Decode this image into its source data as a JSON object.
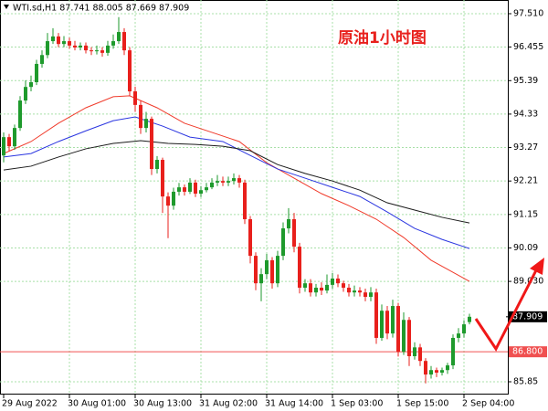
{
  "chart_data": {
    "type": "candlestick",
    "title": "WTI.sd,H1  87.741 88.005 87.669 87.909",
    "annotation": "原油1小时图",
    "categories": [
      "29 Aug 2022",
      null,
      null,
      null,
      null,
      null,
      null,
      null,
      null,
      null,
      null,
      null,
      "30 Aug 01:00",
      null,
      null,
      null,
      null,
      null,
      null,
      null,
      null,
      null,
      null,
      null,
      "30 Aug 13:00",
      null,
      null,
      null,
      null,
      null,
      null,
      null,
      null,
      null,
      null,
      null,
      "31 Aug 02:00",
      null,
      null,
      null,
      null,
      null,
      null,
      null,
      null,
      null,
      null,
      null,
      "31 Aug 14:00",
      null,
      null,
      null,
      null,
      null,
      null,
      null,
      null,
      null,
      null,
      null,
      "1 Sep 03:00",
      null,
      null,
      null,
      null,
      null,
      null,
      null,
      null,
      null,
      null,
      null,
      "1 Sep 15:00",
      null,
      null,
      null,
      null,
      null,
      null,
      null,
      null,
      null,
      null,
      null,
      "2 Sep 04:00",
      null
    ],
    "open": [
      93.02,
      93.6,
      93.31,
      93.89,
      94.76,
      95.19,
      95.34,
      95.92,
      96.2,
      96.64,
      96.79,
      96.55,
      96.64,
      96.5,
      96.44,
      96.5,
      96.35,
      96.32,
      96.35,
      96.27,
      96.5,
      96.64,
      96.93,
      96.35,
      95.05,
      94.62,
      93.89,
      94.18,
      92.59,
      92.88,
      91.72,
      91.43,
      91.87,
      92.01,
      91.87,
      92.16,
      91.81,
      91.92,
      92.01,
      92.16,
      92.21,
      92.16,
      92.21,
      92.3,
      92.16,
      91.0,
      89.84,
      88.97,
      89.26,
      89.7,
      88.97,
      89.84,
      90.71,
      91.0,
      90.13,
      88.83,
      88.97,
      88.68,
      88.83,
      88.74,
      88.92,
      89.12,
      88.97,
      88.83,
      88.68,
      88.74,
      88.68,
      88.54,
      88.68,
      87.24,
      88.1,
      87.38,
      88.25,
      86.8,
      87.81,
      86.66,
      86.94,
      86.51,
      86.08,
      86.22,
      86.14,
      86.22,
      86.37,
      87.24,
      87.38,
      87.741
    ],
    "high": [
      93.75,
      93.7,
      94.0,
      94.9,
      95.4,
      95.55,
      96.05,
      96.35,
      96.9,
      97.05,
      96.9,
      96.8,
      96.75,
      96.65,
      96.6,
      96.6,
      96.45,
      96.5,
      96.45,
      96.65,
      96.85,
      97.4,
      97.05,
      96.45,
      95.2,
      94.75,
      94.4,
      94.25,
      93.0,
      92.95,
      91.85,
      92.0,
      92.15,
      92.1,
      92.3,
      92.25,
      92.05,
      92.15,
      92.3,
      92.4,
      92.35,
      92.35,
      92.45,
      92.4,
      92.25,
      91.1,
      89.95,
      89.45,
      89.9,
      89.8,
      90.0,
      90.9,
      91.35,
      91.2,
      90.25,
      89.1,
      89.1,
      88.95,
      89.0,
      89.25,
      89.3,
      89.25,
      89.05,
      88.95,
      88.9,
      88.85,
      88.8,
      88.85,
      88.8,
      88.3,
      88.25,
      88.45,
      88.35,
      88.05,
      87.9,
      87.1,
      87.05,
      86.6,
      86.35,
      86.3,
      86.3,
      86.45,
      87.35,
      87.55,
      87.8,
      88.005
    ],
    "low": [
      92.8,
      93.15,
      93.2,
      93.8,
      94.65,
      95.05,
      95.25,
      95.8,
      96.1,
      96.55,
      96.45,
      96.45,
      96.4,
      96.35,
      96.35,
      96.25,
      96.2,
      96.22,
      96.15,
      96.18,
      96.4,
      96.55,
      96.2,
      94.9,
      94.4,
      93.7,
      93.75,
      92.4,
      92.45,
      91.2,
      90.4,
      91.3,
      91.75,
      91.75,
      91.8,
      91.7,
      91.7,
      91.85,
      91.95,
      92.05,
      92.05,
      92.05,
      92.1,
      92.0,
      90.85,
      89.6,
      88.75,
      88.4,
      89.1,
      88.8,
      88.85,
      89.7,
      90.55,
      89.95,
      88.65,
      88.7,
      88.55,
      88.55,
      88.6,
      88.65,
      88.8,
      88.85,
      88.7,
      88.55,
      88.55,
      88.55,
      88.4,
      88.4,
      87.05,
      87.15,
      87.2,
      87.25,
      86.65,
      86.7,
      86.35,
      86.55,
      86.35,
      85.8,
      85.95,
      86.0,
      86.05,
      86.1,
      86.25,
      87.1,
      87.25,
      87.669
    ],
    "close": [
      93.6,
      93.31,
      93.89,
      94.76,
      95.19,
      95.34,
      95.92,
      96.2,
      96.64,
      96.79,
      96.55,
      96.64,
      96.5,
      96.44,
      96.5,
      96.35,
      96.32,
      96.35,
      96.27,
      96.5,
      96.64,
      96.93,
      96.35,
      95.05,
      94.62,
      93.89,
      94.18,
      92.59,
      92.88,
      91.72,
      91.43,
      91.87,
      92.01,
      91.87,
      92.16,
      91.81,
      91.92,
      92.01,
      92.16,
      92.21,
      92.16,
      92.21,
      92.3,
      92.16,
      91.0,
      89.84,
      88.97,
      89.26,
      89.7,
      88.97,
      89.84,
      90.71,
      91.0,
      90.13,
      88.83,
      88.97,
      88.68,
      88.83,
      88.74,
      88.92,
      89.12,
      88.97,
      88.83,
      88.68,
      88.74,
      88.68,
      88.54,
      88.68,
      87.24,
      88.1,
      87.38,
      88.25,
      86.8,
      87.81,
      86.66,
      86.94,
      86.51,
      86.08,
      86.22,
      86.14,
      86.22,
      86.37,
      87.24,
      87.38,
      87.67,
      87.909
    ],
    "up_color": "#1e9a2c",
    "down_color": "#e8201c",
    "overlays": [
      {
        "color": "#f03a2a",
        "x": [
          0,
          5,
          10,
          15,
          20,
          23,
          28,
          33,
          38,
          43,
          48,
          53,
          58,
          63,
          68,
          73,
          78,
          85
        ],
        "values": [
          93.08,
          93.46,
          94.04,
          94.53,
          94.88,
          94.91,
          94.53,
          94.04,
          93.75,
          93.46,
          92.79,
          92.3,
          91.81,
          91.43,
          91.0,
          90.42,
          89.7,
          89.03
        ]
      },
      {
        "color": "#2a35e0",
        "x": [
          0,
          5,
          10,
          15,
          20,
          24,
          29,
          34,
          40,
          45,
          50,
          55,
          60,
          65,
          70,
          75,
          80,
          85
        ],
        "values": [
          92.97,
          93.08,
          93.46,
          93.8,
          94.12,
          94.24,
          93.95,
          93.6,
          93.46,
          93.02,
          92.59,
          92.3,
          92.01,
          91.72,
          91.23,
          90.71,
          90.36,
          90.07
        ]
      },
      {
        "color": "#1a1a1a",
        "x": [
          0,
          5,
          10,
          15,
          20,
          25,
          30,
          35,
          40,
          45,
          50,
          55,
          60,
          65,
          70,
          75,
          80,
          85
        ],
        "values": [
          92.56,
          92.68,
          92.97,
          93.23,
          93.4,
          93.49,
          93.4,
          93.37,
          93.31,
          93.17,
          92.73,
          92.45,
          92.21,
          91.92,
          91.52,
          91.29,
          91.06,
          90.88
        ]
      }
    ],
    "level": {
      "value": 86.8,
      "label": "86.800",
      "color": "#f05050"
    },
    "ylim": [
      85.445,
      97.944
    ],
    "yticks": [
      {
        "value": 97.51,
        "label": "97.510"
      },
      96.455,
      95.39,
      94.33,
      93.27,
      92.21,
      91.15,
      90.09,
      {
        "value": 89.03,
        "label": "89.030"
      },
      85.85
    ],
    "grid": true
  }
}
